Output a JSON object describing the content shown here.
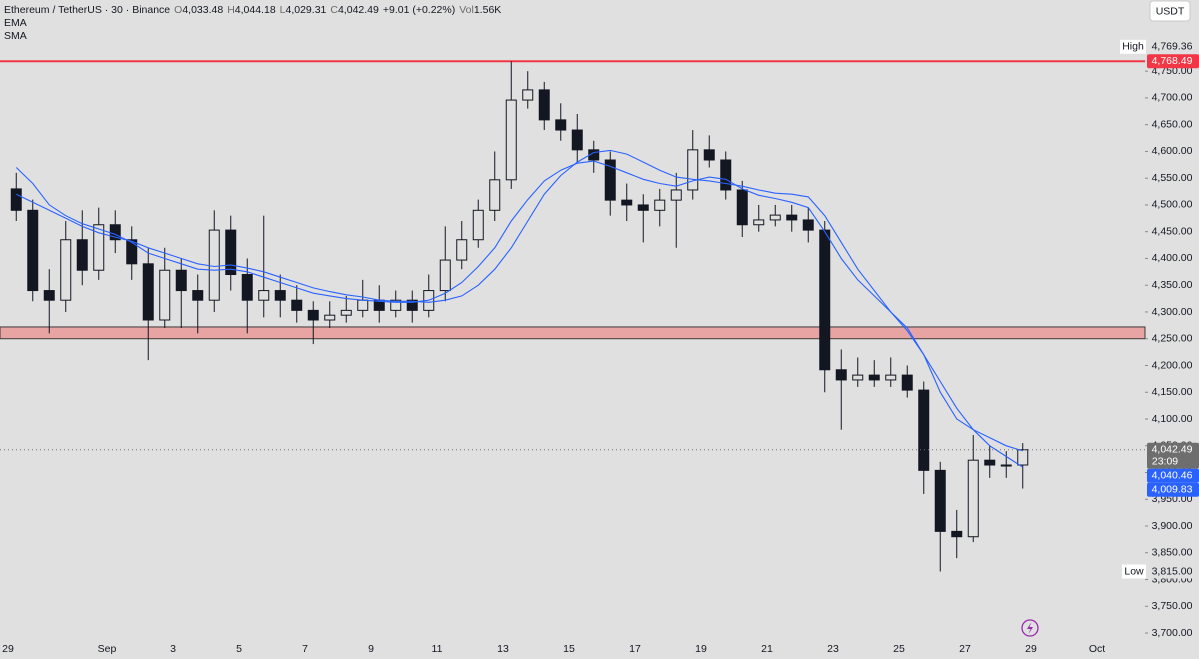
{
  "chart_data": {
    "type": "candlestick",
    "title": "Ethereum / TetherUS · 30 · Binance",
    "header": [
      [
        "O",
        "4,033.48"
      ],
      [
        "H",
        "4,044.18"
      ],
      [
        "L",
        "4,029.31"
      ],
      [
        "C",
        "4,042.49"
      ]
    ],
    "change": "+9.01 (+0.22%)",
    "volume_key": "Vol",
    "volume": "1.56K",
    "currency": "USDT",
    "color": "#131722",
    "categories": [
      "29",
      null,
      null,
      null,
      null,
      null,
      "Sep",
      null,
      null,
      null,
      "3",
      null,
      null,
      null,
      "5",
      null,
      null,
      null,
      "7",
      null,
      null,
      null,
      "9",
      null,
      null,
      null,
      "11",
      null,
      null,
      null,
      "13",
      null,
      null,
      null,
      "15",
      null,
      null,
      null,
      "17",
      null,
      null,
      null,
      "19",
      null,
      null,
      null,
      "21",
      null,
      null,
      null,
      "23",
      null,
      null,
      null,
      "25",
      null,
      null,
      null,
      "27",
      null,
      null,
      null,
      "29",
      null,
      null,
      null,
      "Oct"
    ],
    "ohlc": [
      [
        4530,
        4560,
        4470,
        4490
      ],
      [
        4490,
        4510,
        4320,
        4340
      ],
      [
        4340,
        4380,
        4260,
        4322
      ],
      [
        4322,
        4470,
        4300,
        4435
      ],
      [
        4435,
        4490,
        4350,
        4378
      ],
      [
        4378,
        4495,
        4360,
        4463
      ],
      [
        4463,
        4490,
        4410,
        4435
      ],
      [
        4435,
        4460,
        4360,
        4390
      ],
      [
        4390,
        4420,
        4210,
        4285
      ],
      [
        4285,
        4420,
        4270,
        4378
      ],
      [
        4378,
        4400,
        4270,
        4340
      ],
      [
        4340,
        4370,
        4260,
        4322
      ],
      [
        4322,
        4490,
        4300,
        4453
      ],
      [
        4453,
        4480,
        4340,
        4370
      ],
      [
        4370,
        4400,
        4260,
        4322
      ],
      [
        4322,
        4480,
        4290,
        4340
      ],
      [
        4340,
        4370,
        4290,
        4322
      ],
      [
        4322,
        4350,
        4280,
        4303
      ],
      [
        4303,
        4320,
        4240,
        4285
      ],
      [
        4285,
        4320,
        4270,
        4294
      ],
      [
        4294,
        4330,
        4280,
        4303
      ],
      [
        4303,
        4360,
        4290,
        4322
      ],
      [
        4322,
        4350,
        4280,
        4303
      ],
      [
        4303,
        4340,
        4290,
        4322
      ],
      [
        4322,
        4340,
        4280,
        4303
      ],
      [
        4303,
        4370,
        4290,
        4340
      ],
      [
        4340,
        4460,
        4320,
        4397
      ],
      [
        4397,
        4470,
        4380,
        4435
      ],
      [
        4435,
        4510,
        4420,
        4490
      ],
      [
        4490,
        4600,
        4470,
        4547
      ],
      [
        4547,
        4768.49,
        4530,
        4696
      ],
      [
        4696,
        4750,
        4680,
        4715
      ],
      [
        4715,
        4730,
        4640,
        4659
      ],
      [
        4659,
        4690,
        4620,
        4640
      ],
      [
        4640,
        4670,
        4580,
        4603
      ],
      [
        4603,
        4620,
        4560,
        4584
      ],
      [
        4584,
        4600,
        4480,
        4509
      ],
      [
        4509,
        4540,
        4470,
        4500
      ],
      [
        4500,
        4520,
        4430,
        4490
      ],
      [
        4490,
        4530,
        4460,
        4509
      ],
      [
        4509,
        4560,
        4420,
        4528
      ],
      [
        4528,
        4640,
        4510,
        4603
      ],
      [
        4603,
        4630,
        4570,
        4584
      ],
      [
        4584,
        4600,
        4510,
        4528
      ],
      [
        4528,
        4545,
        4440,
        4463
      ],
      [
        4463,
        4500,
        4450,
        4472
      ],
      [
        4472,
        4500,
        4460,
        4481
      ],
      [
        4481,
        4500,
        4450,
        4472
      ],
      [
        4472,
        4495,
        4430,
        4453
      ],
      [
        4453,
        4470,
        4150,
        4192
      ],
      [
        4192,
        4230,
        4080,
        4173
      ],
      [
        4173,
        4215,
        4160,
        4182
      ],
      [
        4182,
        4210,
        4160,
        4173
      ],
      [
        4173,
        4215,
        4160,
        4182
      ],
      [
        4182,
        4200,
        4140,
        4154
      ],
      [
        4154,
        4170,
        3960,
        4004
      ],
      [
        4004,
        4020,
        3815,
        3890
      ],
      [
        3890,
        3930,
        3840,
        3880
      ],
      [
        3880,
        4070,
        3870,
        4023
      ],
      [
        4023,
        4050,
        3990,
        4014
      ],
      [
        4014,
        4040,
        3990,
        4014
      ],
      [
        4014,
        4055,
        3970,
        4042.49
      ],
      null,
      null,
      null,
      null,
      null
    ],
    "indicators": [
      {
        "name": "EMA",
        "color": "#2962ff",
        "last_label": "4,040.46",
        "values": [
          4570,
          4540,
          4500,
          4480,
          4465,
          4455,
          4445,
          4430,
          4410,
          4400,
          4390,
          4380,
          4378,
          4380,
          4375,
          4365,
          4355,
          4345,
          4335,
          4330,
          4325,
          4322,
          4320,
          4318,
          4318,
          4322,
          4335,
          4355,
          4385,
          4420,
          4470,
          4510,
          4545,
          4565,
          4578,
          4582,
          4572,
          4560,
          4548,
          4540,
          4535,
          4545,
          4552,
          4548,
          4530,
          4518,
          4512,
          4505,
          4495,
          4450,
          4400,
          4360,
          4330,
          4300,
          4270,
          4220,
          4150,
          4100,
          4080,
          4065,
          4050,
          4040.46,
          null,
          null,
          null,
          null,
          null
        ]
      },
      {
        "name": "SMA",
        "color": "#2962ff",
        "last_label": "4,009.83",
        "values": [
          4520,
          4505,
          4490,
          4475,
          4460,
          4448,
          4440,
          4432,
          4420,
          4410,
          4400,
          4390,
          4385,
          4388,
          4382,
          4375,
          4365,
          4355,
          4345,
          4338,
          4332,
          4328,
          4322,
          4320,
          4320,
          4318,
          4322,
          4330,
          4350,
          4380,
          4420,
          4470,
          4520,
          4555,
          4580,
          4598,
          4602,
          4595,
          4580,
          4565,
          4552,
          4548,
          4545,
          4540,
          4535,
          4528,
          4522,
          4520,
          4515,
          4480,
          4430,
          4380,
          4340,
          4300,
          4265,
          4220,
          4170,
          4120,
          4080,
          4050,
          4030,
          4009.83,
          null,
          null,
          null,
          null,
          null
        ]
      }
    ],
    "ylim": [
      3687,
      4883
    ],
    "yticks": [
      {
        "value": 3700,
        "label": "3,700.00"
      },
      {
        "value": 3750,
        "label": "3,750.00"
      },
      {
        "value": 3800,
        "label": "3,800.00"
      },
      {
        "value": 3850,
        "label": "3,850.00"
      },
      {
        "value": 3900,
        "label": "3,900.00"
      },
      {
        "value": 3950,
        "label": "3,950.00"
      },
      {
        "value": 4000,
        "label": "4,000.00"
      },
      {
        "value": 4050,
        "label": "4,050.00"
      },
      {
        "value": 4100,
        "label": "4,100.00"
      },
      {
        "value": 4150,
        "label": "4,150.00"
      },
      {
        "value": 4200,
        "label": "4,200.00"
      },
      {
        "value": 4250,
        "label": "4,250.00"
      },
      {
        "value": 4300,
        "label": "4,300.00"
      },
      {
        "value": 4350,
        "label": "4,350.00"
      },
      {
        "value": 4400,
        "label": "4,400.00"
      },
      {
        "value": 4450,
        "label": "4,450.00"
      },
      {
        "value": 4500,
        "label": "4,500.00"
      },
      {
        "value": 4550,
        "label": "4,550.00"
      },
      {
        "value": 4600,
        "label": "4,600.00"
      },
      {
        "value": 4650,
        "label": "4,650.00"
      },
      {
        "value": 4700,
        "label": "4,700.00"
      },
      {
        "value": 4750,
        "label": "4,750.00"
      }
    ],
    "grid": false,
    "level": {
      "value": 4768.49,
      "label": "4,768.49",
      "color": "#f23645"
    },
    "zone": {
      "range": [
        4250,
        4272
      ],
      "color": "#e8a3a3"
    },
    "high": {
      "name": "High",
      "value": 4769.36,
      "label": "4,769.36"
    },
    "low": {
      "name": "Low",
      "value": 3815,
      "label": "3,815.00"
    },
    "last_price": {
      "value": 4042.49,
      "label": "4,042.49",
      "countdown": "23:09",
      "color": "#6e6e6e"
    }
  }
}
